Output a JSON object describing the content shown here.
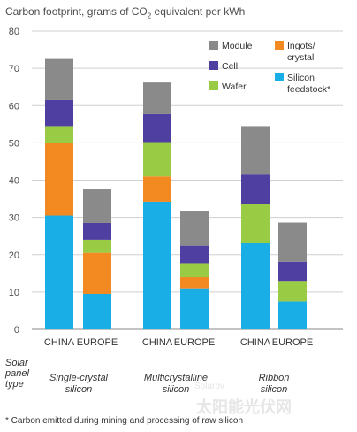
{
  "chart_data": {
    "type": "bar",
    "stacked": true,
    "title_prefix": "Carbon footprint, grams of CO",
    "title_sub": "2",
    "title_suffix": " equivalent per kWh",
    "categories": [
      "CHINA",
      "EUROPE",
      "CHINA",
      "EUROPE",
      "CHINA",
      "EUROPE"
    ],
    "groups": [
      "Single-crystal silicon",
      "Multicrystalline silicon",
      "Ribbon silicon"
    ],
    "row_label": "Solar panel type",
    "ylim": [
      0,
      80
    ],
    "yticks": [
      0,
      10,
      20,
      30,
      40,
      50,
      60,
      70,
      80
    ],
    "grid": "horizontal",
    "legend_position": "top-right",
    "series": [
      {
        "name": "Silicon feedstock*",
        "color": "#1aaee6",
        "values": [
          30.5,
          9.5,
          34.2,
          11,
          23.2,
          7.5
        ]
      },
      {
        "name": "Ingots/ crystal",
        "color": "#f28a21",
        "values": [
          19.5,
          11,
          6.8,
          3,
          0,
          0
        ]
      },
      {
        "name": "Wafer",
        "color": "#99cc44",
        "values": [
          4.5,
          3.5,
          9.2,
          3.7,
          10.3,
          5.5
        ]
      },
      {
        "name": "Cell",
        "color": "#4e3fa0",
        "values": [
          7,
          4.5,
          7.5,
          4.7,
          8,
          5.1
        ]
      },
      {
        "name": "Module",
        "color": "#8a8a8a",
        "values": [
          11,
          9,
          8.5,
          9.4,
          13,
          10.5
        ]
      }
    ],
    "footnote": "* Carbon emitted during mining and processing of raw silicon"
  },
  "watermark": {
    "text": "太阳能光伏网",
    "url_text": "Solarpv"
  }
}
